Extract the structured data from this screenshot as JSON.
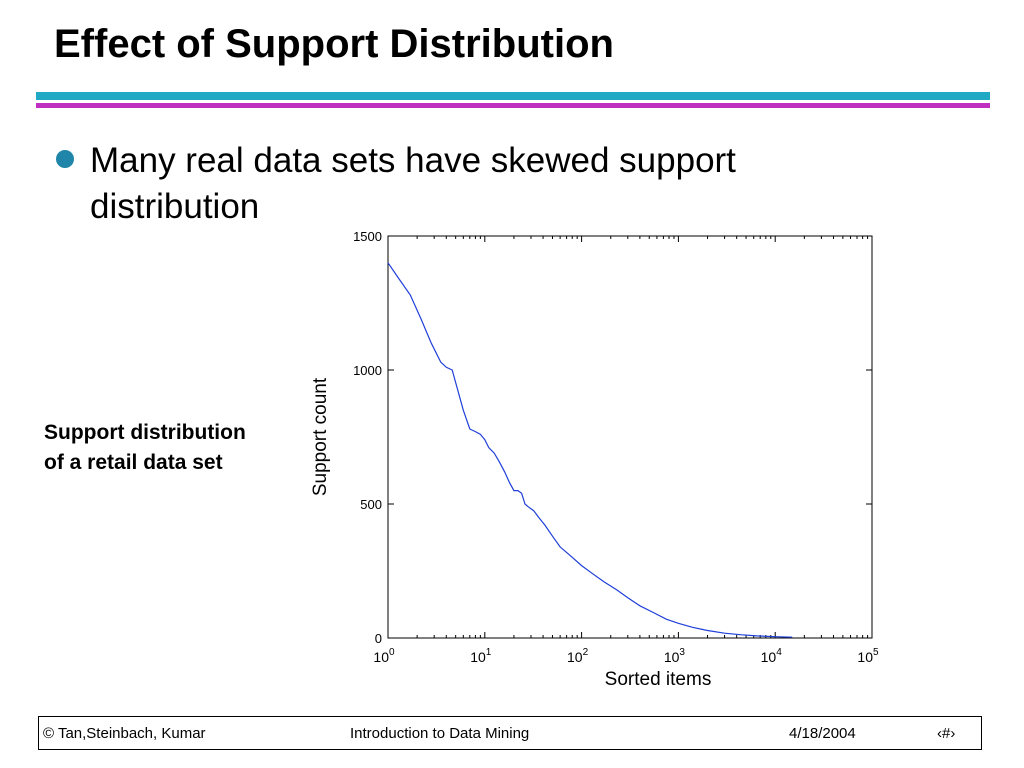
{
  "slide": {
    "title": "Effect of Support Distribution",
    "bullet": "Many real data sets have skewed support distribution",
    "side_caption": "Support distribution of a retail data set"
  },
  "footer": {
    "left": "© Tan,Steinbach, Kumar",
    "center": "Introduction to Data Mining",
    "date": "4/18/2004",
    "page": "‹#›"
  },
  "colors": {
    "accent_teal": "#1fa9c5",
    "accent_magenta": "#c030c0",
    "bullet": "#1f86a9",
    "series": "#1f3fd8"
  },
  "chart_data": {
    "type": "line",
    "xlabel": "Sorted items",
    "ylabel": "Support count",
    "x_scale": "log",
    "xlim": [
      1,
      100000
    ],
    "ylim": [
      0,
      1500
    ],
    "x_ticks": [
      {
        "value": 1,
        "base": "10",
        "exp": "0"
      },
      {
        "value": 10,
        "base": "10",
        "exp": "1"
      },
      {
        "value": 100,
        "base": "10",
        "exp": "2"
      },
      {
        "value": 1000,
        "base": "10",
        "exp": "3"
      },
      {
        "value": 10000,
        "base": "10",
        "exp": "4"
      },
      {
        "value": 100000,
        "base": "10",
        "exp": "5"
      }
    ],
    "y_ticks": [
      {
        "value": 0,
        "label": "0"
      },
      {
        "value": 500,
        "label": "500"
      },
      {
        "value": 1000,
        "label": "1000"
      },
      {
        "value": 1500,
        "label": "1500"
      }
    ],
    "series": [
      {
        "x": [
          1,
          1.3,
          1.7,
          2.2,
          2.8,
          3.5,
          4,
          4.6,
          5.3,
          6,
          7,
          8,
          9,
          10,
          11,
          12.5,
          14,
          16,
          18,
          20,
          22,
          24,
          26,
          28,
          32,
          36,
          42,
          50,
          60,
          75,
          100,
          130,
          170,
          230,
          300,
          400,
          550,
          750,
          1000,
          1400,
          2000,
          3000,
          4500,
          6500,
          10000,
          15000
        ],
        "y": [
          1400,
          1340,
          1280,
          1190,
          1100,
          1030,
          1010,
          1000,
          920,
          850,
          780,
          770,
          760,
          740,
          710,
          690,
          660,
          620,
          580,
          550,
          550,
          540,
          500,
          490,
          475,
          450,
          420,
          380,
          340,
          310,
          270,
          240,
          210,
          180,
          150,
          120,
          95,
          70,
          55,
          40,
          28,
          18,
          12,
          8,
          5,
          3
        ]
      }
    ]
  }
}
